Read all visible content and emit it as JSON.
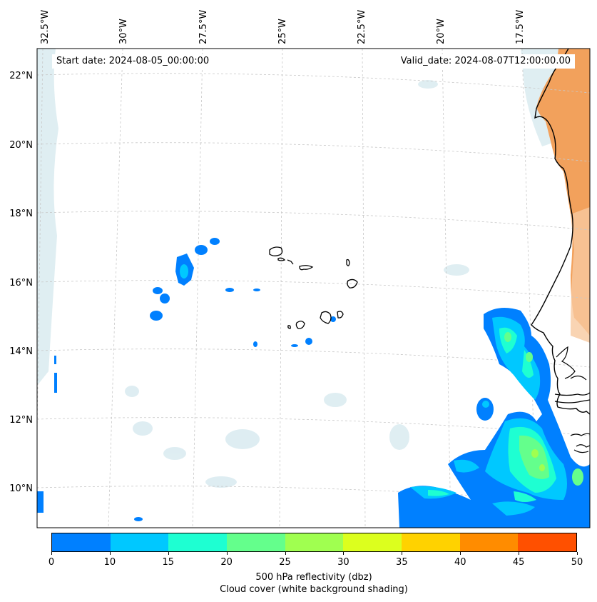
{
  "map": {
    "start_date": "Start date: 2024-08-05_00:00:00",
    "valid_date": "Valid_date: 2024-08-07T12:00:00.00",
    "lon_labels": [
      "32.5°W",
      "30°W",
      "27.5°W",
      "25°W",
      "22.5°W",
      "20°W",
      "17.5°W"
    ],
    "lat_labels": [
      "22°N",
      "20°N",
      "18°N",
      "16°N",
      "14°N",
      "12°N",
      "10°N"
    ],
    "colors": {
      "land_dust": "#f2a15c",
      "cloud_shading": "#d4e8ee",
      "coast": "#000000"
    }
  },
  "colorbar": {
    "ticks": [
      "0",
      "10",
      "15",
      "20",
      "25",
      "30",
      "35",
      "40",
      "45",
      "50"
    ],
    "colors": [
      "#0080ff",
      "#00c8ff",
      "#1effd2",
      "#64ff8c",
      "#a0ff50",
      "#dcff1e",
      "#ffd200",
      "#ff8c00",
      "#ff5000"
    ],
    "label": "500 hPa reflectivity (dbz)",
    "sublabel": "Cloud cover (white background shading)"
  }
}
